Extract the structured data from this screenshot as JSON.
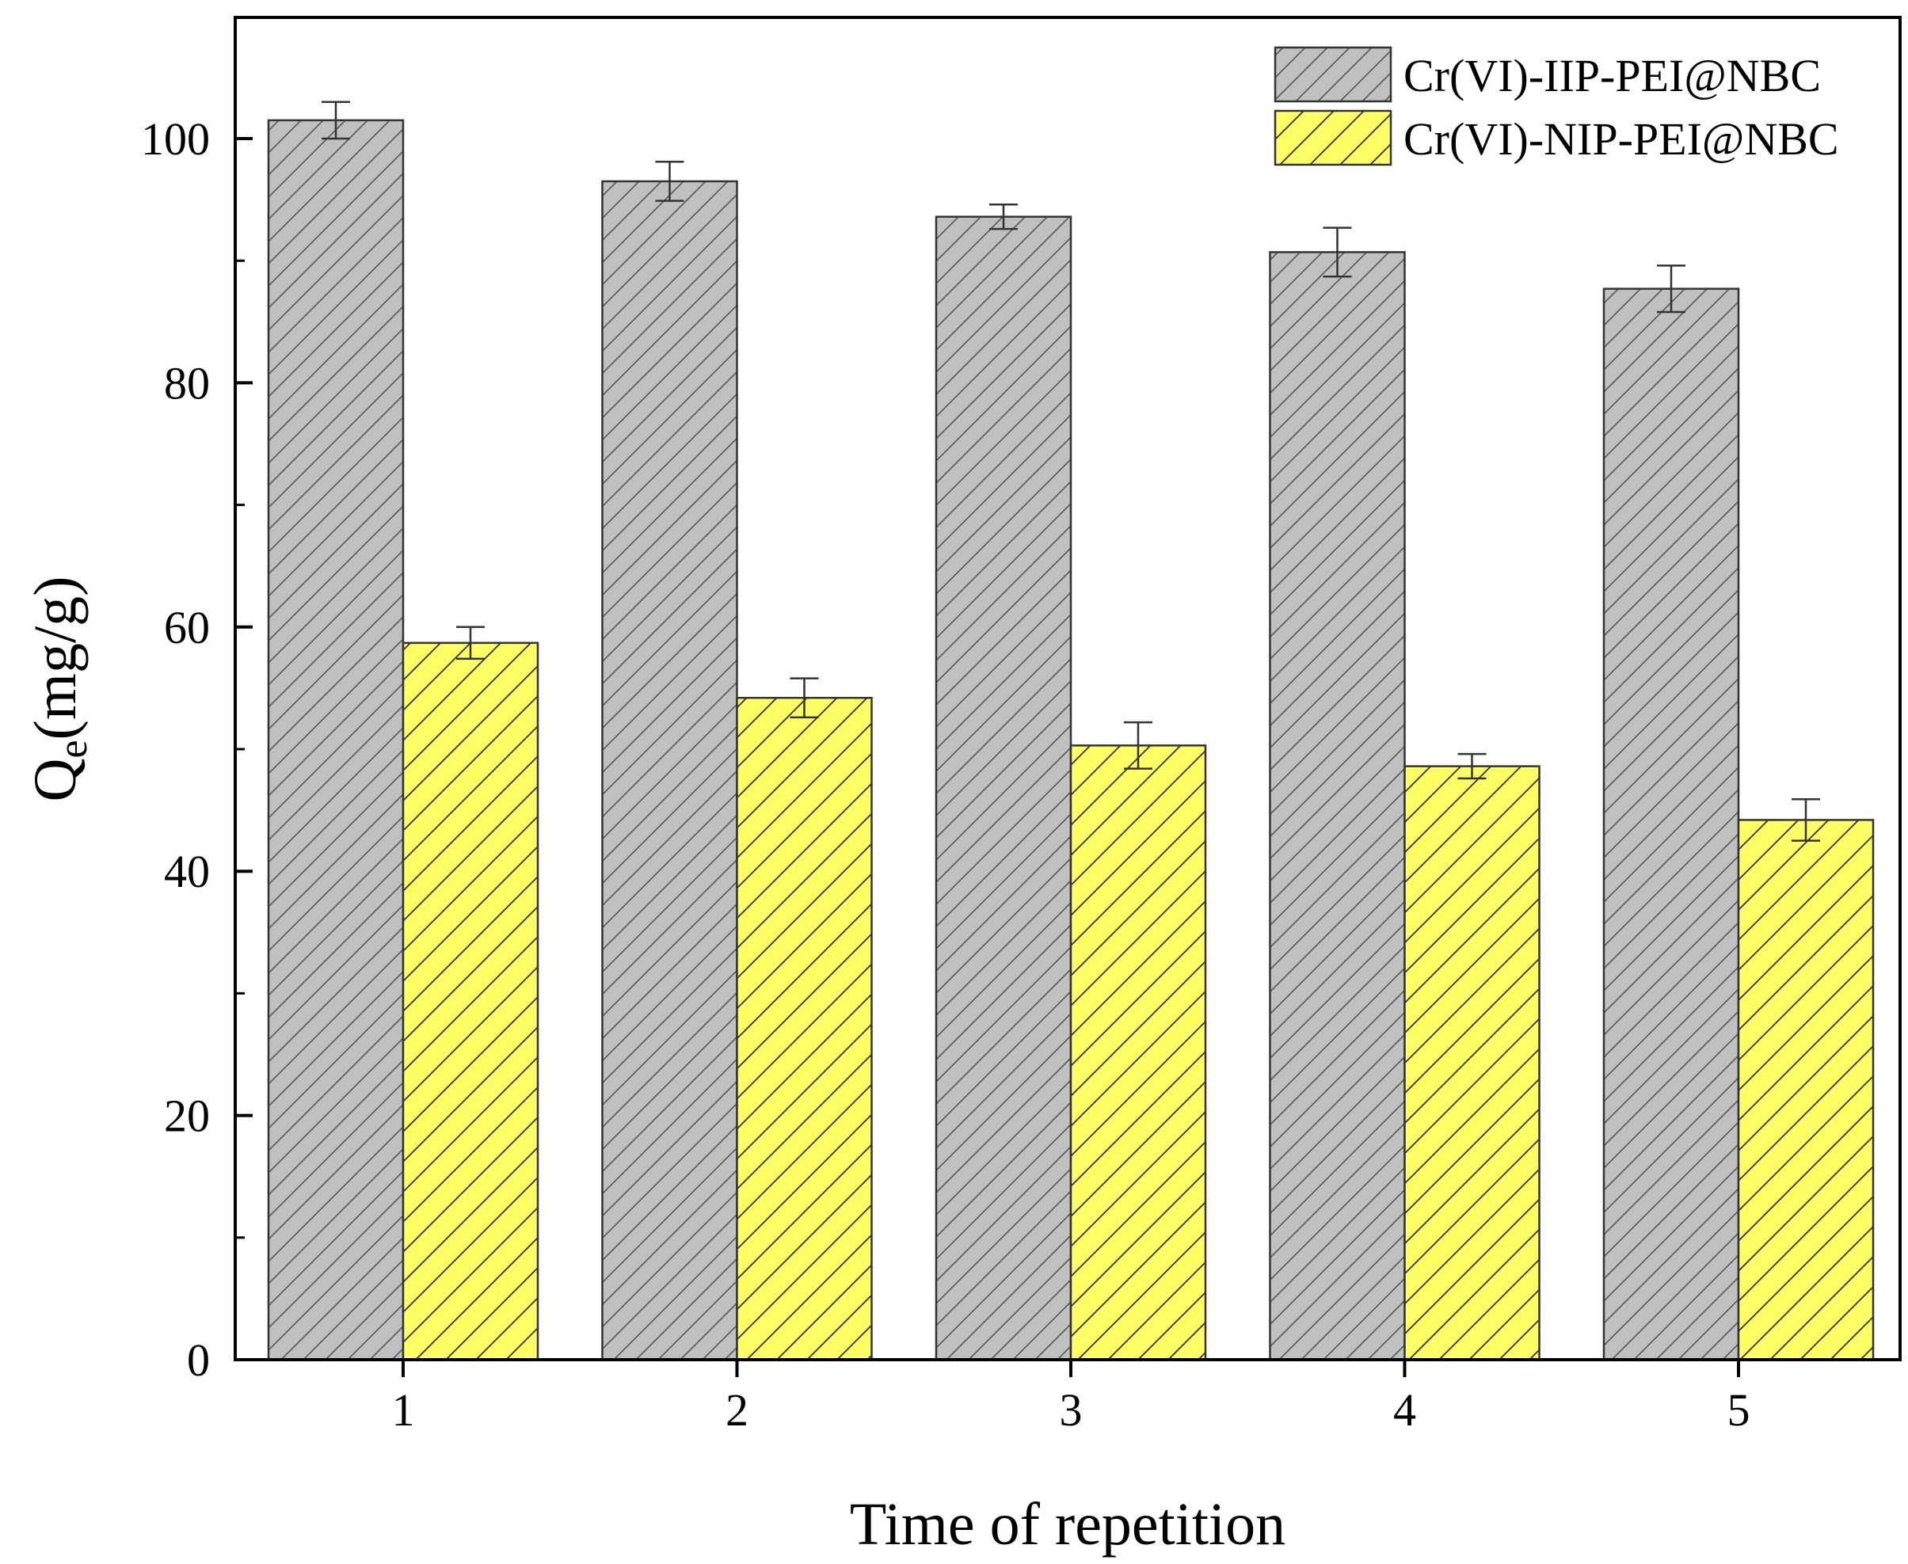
{
  "chart_data": {
    "type": "bar",
    "categories": [
      "1",
      "2",
      "3",
      "4",
      "5"
    ],
    "series": [
      {
        "name": "Cr(VI)-IIP-PEI@NBC",
        "values": [
          101.5,
          96.5,
          93.6,
          90.7,
          87.7
        ],
        "errors": [
          1.5,
          1.6,
          1.0,
          2.0,
          1.9
        ],
        "color": "#c0c0c0",
        "hatch_color": "#555555"
      },
      {
        "name": "Cr(VI)-NIP-PEI@NBC",
        "values": [
          58.7,
          54.2,
          50.3,
          48.6,
          44.2
        ],
        "errors": [
          1.3,
          1.6,
          1.9,
          1.0,
          1.7
        ],
        "color": "#ffff66",
        "hatch_color": "#333333"
      }
    ],
    "xlabel": "Time of repetition",
    "ylabel_main": "Q",
    "ylabel_sub": "e",
    "ylabel_unit": "(mg/g)",
    "ylim": [
      0,
      110
    ],
    "yticks": [
      0,
      20,
      40,
      60,
      80,
      100
    ],
    "legend_position": "top-right",
    "grid": false
  }
}
